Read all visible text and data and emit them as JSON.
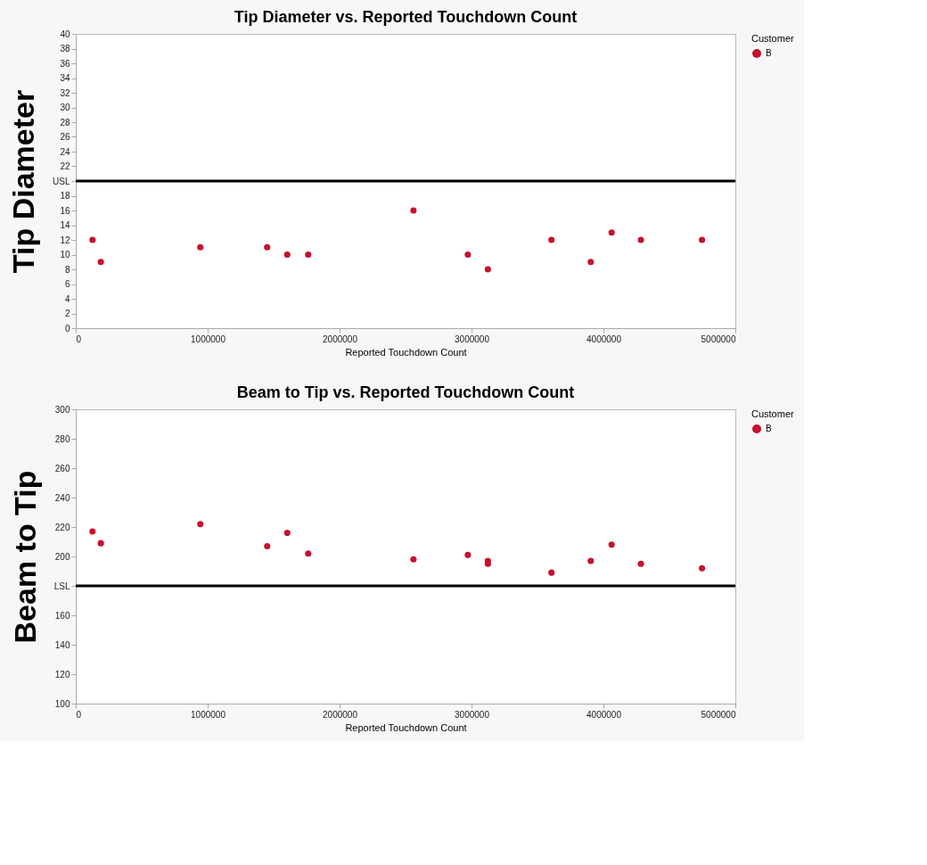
{
  "chart_data": [
    {
      "type": "scatter",
      "title": "Tip Diameter vs. Reported Touchdown Count",
      "xlabel": "Reported Touchdown Count",
      "ylabel": "Tip Diameter",
      "legend_title": "Customer",
      "legend": "top right",
      "marker": "circle",
      "grid": false,
      "xlim": [
        0,
        5000000
      ],
      "xticks": [
        0,
        1000000,
        2000000,
        3000000,
        4000000,
        5000000
      ],
      "ylim": [
        0,
        40
      ],
      "yticks": [
        0,
        2,
        4,
        6,
        8,
        10,
        12,
        14,
        16,
        18,
        {
          "value": 20,
          "label": "USL"
        },
        22,
        24,
        26,
        28,
        30,
        32,
        34,
        36,
        38,
        40
      ],
      "ref_lines": [
        {
          "axis": "y",
          "value": 20,
          "color": "#000000",
          "line_style": "solid"
        }
      ],
      "series": [
        {
          "name": "B",
          "color": "#c8102e",
          "x": [
            127000,
            190000,
            944000,
            1451000,
            1603000,
            1762000,
            2560000,
            2972000,
            3124000,
            3606000,
            3904000,
            4062000,
            4284000,
            4747000
          ],
          "values": [
            12,
            9,
            11,
            11,
            10,
            10,
            16,
            10,
            8,
            12,
            9,
            13,
            12,
            12
          ]
        }
      ]
    },
    {
      "type": "scatter",
      "title": "Beam to Tip vs. Reported Touchdown Count",
      "xlabel": "Reported Touchdown Count",
      "ylabel": "Beam to Tip",
      "legend_title": "Customer",
      "legend": "top right",
      "marker": "circle",
      "grid": false,
      "xlim": [
        0,
        5000000
      ],
      "xticks": [
        0,
        1000000,
        2000000,
        3000000,
        4000000,
        5000000
      ],
      "ylim": [
        100,
        300
      ],
      "yticks": [
        100,
        120,
        140,
        160,
        {
          "value": 180,
          "label": "LSL"
        },
        200,
        220,
        240,
        260,
        280,
        300
      ],
      "ref_lines": [
        {
          "axis": "y",
          "value": 180,
          "color": "#000000",
          "line_style": "solid"
        }
      ],
      "series": [
        {
          "name": "B",
          "color": "#c8102e",
          "x": [
            127000,
            190000,
            944000,
            1451000,
            1603000,
            1762000,
            2560000,
            2972000,
            3124000,
            3124000,
            3606000,
            3904000,
            4062000,
            4284000,
            4747000
          ],
          "values": [
            217,
            209,
            222,
            207,
            216,
            202,
            198,
            201,
            197,
            195,
            189,
            197,
            208,
            195,
            192
          ]
        }
      ]
    }
  ]
}
